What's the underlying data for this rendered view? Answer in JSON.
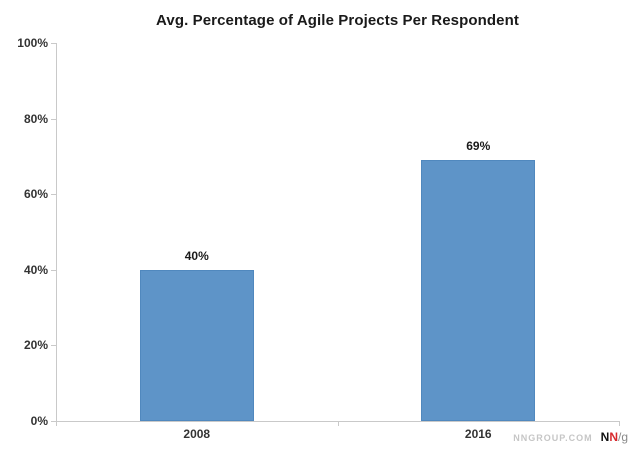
{
  "chart_data": {
    "type": "bar",
    "title": "Avg. Percentage of Agile Projects Per Respondent",
    "categories": [
      "2008",
      "2016"
    ],
    "values": [
      40,
      69
    ],
    "value_labels": [
      "40%",
      "69%"
    ],
    "xlabel": "",
    "ylabel": "",
    "ylim": [
      0,
      100
    ],
    "yticks": [
      0,
      20,
      40,
      60,
      80,
      100
    ],
    "ytick_labels": [
      "0%",
      "20%",
      "40%",
      "60%",
      "80%",
      "100%"
    ],
    "grid": false,
    "legend_position": "none",
    "colors": {
      "bar_fill": "#5E94C8",
      "bar_border": "#5088BE",
      "axis_line": "#C9C9C9",
      "title_text": "#1A1A1A",
      "tick_text": "#333333"
    }
  },
  "watermark": {
    "site": "NNGROUP.COM",
    "logo_n1": "N",
    "logo_n2": "N",
    "logo_slash_g": "/g",
    "colors": {
      "site": "#C6C6C6",
      "n1": "#111111",
      "n2": "#D7282C",
      "slash_g": "#8A8A8A"
    }
  }
}
